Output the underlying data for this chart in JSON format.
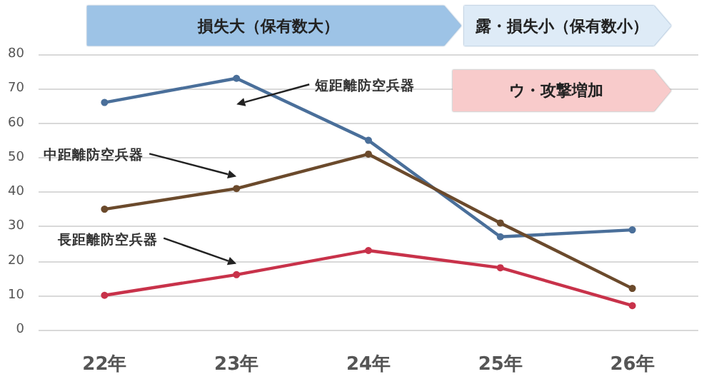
{
  "chart_data": {
    "type": "line",
    "categories": [
      "22年",
      "23年",
      "24年",
      "25年",
      "26年"
    ],
    "series": [
      {
        "name": "短距離防空兵器",
        "color": "#4a6f9a",
        "values": [
          66,
          73,
          55,
          27,
          29
        ]
      },
      {
        "name": "中距離防空兵器",
        "color": "#6b4a2c",
        "values": [
          35,
          41,
          51,
          31,
          12
        ]
      },
      {
        "name": "長距離防空兵器",
        "color": "#c8324a",
        "values": [
          10,
          16,
          23,
          18,
          7
        ]
      }
    ],
    "annotations": [
      "損失大（保有数大）",
      "露・損失小（保有数小）",
      "ウ・攻撃増加"
    ],
    "ylim": [
      0,
      80
    ],
    "yticks": [
      0,
      10,
      20,
      30,
      40,
      50,
      60,
      70,
      80
    ],
    "grid": "y",
    "legend": false,
    "marker": "circle",
    "line_style": "solid"
  }
}
